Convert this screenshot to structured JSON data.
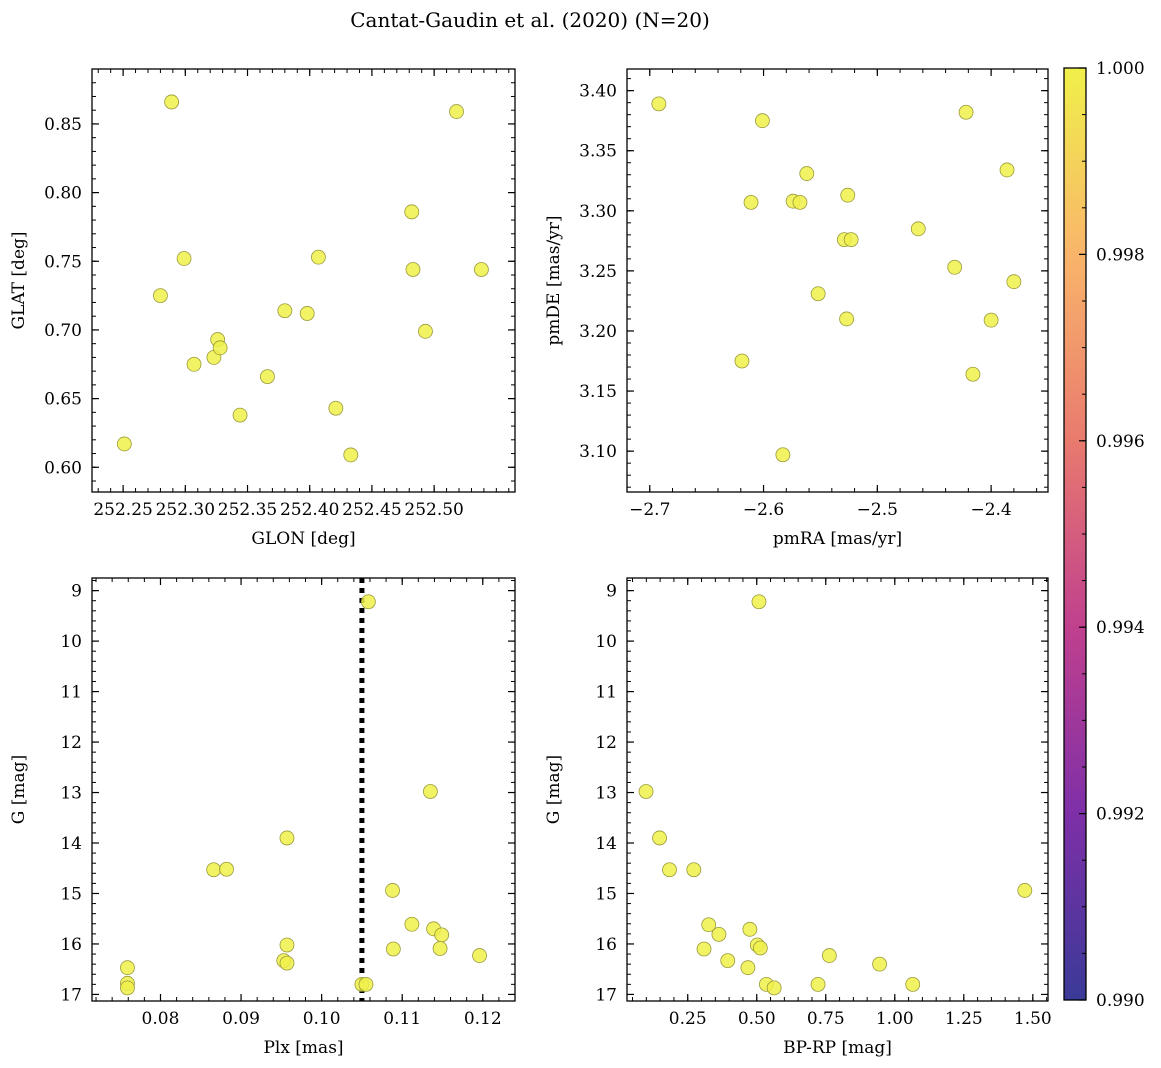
{
  "figure_title": "Cantat-Gaudin et al. (2020) (N=20)",
  "marker_color": "#f0f04a",
  "marker_edge": "#9a9a3a",
  "colorbar": {
    "range": [
      0.99,
      1.0
    ],
    "ticks": [
      0.99,
      0.992,
      0.994,
      0.996,
      0.998,
      1.0
    ],
    "tick_labels": [
      "0.990",
      "0.992",
      "0.994",
      "0.996",
      "0.998",
      "1.000"
    ],
    "colormap": "plasma",
    "stops": [
      "#3a3a98",
      "#7e2fa8",
      "#c0408e",
      "#e97a6e",
      "#f9b56a",
      "#f0f04a"
    ]
  },
  "chart_data": [
    {
      "type": "scatter",
      "name": "glon-glat",
      "xlabel": "GLON [deg]",
      "ylabel": "GLAT [deg]",
      "xlim": [
        252.225,
        252.565
      ],
      "ylim": [
        0.582,
        0.89
      ],
      "xticks": [
        252.25,
        252.3,
        252.35,
        252.4,
        252.45,
        252.5
      ],
      "xtick_labels": [
        "252.25",
        "252.30",
        "252.35",
        "252.40",
        "252.45",
        "252.50"
      ],
      "yticks": [
        0.6,
        0.65,
        0.7,
        0.75,
        0.8,
        0.85
      ],
      "ytick_labels": [
        "0.60",
        "0.65",
        "0.70",
        "0.75",
        "0.80",
        "0.85"
      ],
      "x": [
        252.251,
        252.289,
        252.28,
        252.299,
        252.307,
        252.323,
        252.326,
        252.328,
        252.344,
        252.366,
        252.38,
        252.398,
        252.407,
        252.433,
        252.421,
        252.482,
        252.483,
        252.493,
        252.518,
        252.538
      ],
      "y": [
        0.617,
        0.866,
        0.725,
        0.752,
        0.675,
        0.68,
        0.693,
        0.687,
        0.638,
        0.666,
        0.714,
        0.712,
        0.753,
        0.609,
        0.643,
        0.786,
        0.744,
        0.699,
        0.859,
        0.744
      ]
    },
    {
      "type": "scatter",
      "name": "pmra-pmde",
      "xlabel": "pmRA [mas/yr]",
      "ylabel": "pmDE [mas/yr]",
      "xlim": [
        -2.72,
        -2.35
      ],
      "ylim": [
        3.066,
        3.418
      ],
      "xticks": [
        -2.7,
        -2.6,
        -2.5,
        -2.4
      ],
      "xtick_labels": [
        "−2.7",
        "−2.6",
        "−2.5",
        "−2.4"
      ],
      "yticks": [
        3.1,
        3.15,
        3.2,
        3.25,
        3.3,
        3.35,
        3.4
      ],
      "ytick_labels": [
        "3.10",
        "3.15",
        "3.20",
        "3.25",
        "3.30",
        "3.35",
        "3.40"
      ],
      "x": [
        -2.692,
        -2.601,
        -2.611,
        -2.619,
        -2.583,
        -2.574,
        -2.568,
        -2.562,
        -2.552,
        -2.526,
        -2.529,
        -2.523,
        -2.527,
        -2.464,
        -2.432,
        -2.422,
        -2.416,
        -2.386,
        -2.38,
        -2.4
      ],
      "y": [
        3.389,
        3.375,
        3.307,
        3.175,
        3.097,
        3.308,
        3.307,
        3.331,
        3.231,
        3.313,
        3.276,
        3.276,
        3.21,
        3.285,
        3.253,
        3.382,
        3.164,
        3.334,
        3.241,
        3.209
      ]
    },
    {
      "type": "scatter",
      "name": "plx-g",
      "xlabel": "Plx [mas]",
      "ylabel": "G [mag]",
      "xlim": [
        0.0715,
        0.124
      ],
      "ylim": [
        17.13,
        8.75
      ],
      "xticks": [
        0.08,
        0.09,
        0.1,
        0.11,
        0.12
      ],
      "xtick_labels": [
        "0.08",
        "0.09",
        "0.10",
        "0.11",
        "0.12"
      ],
      "yticks": [
        9,
        10,
        11,
        12,
        13,
        14,
        15,
        16,
        17
      ],
      "ytick_labels": [
        "9",
        "10",
        "11",
        "12",
        "13",
        "14",
        "15",
        "16",
        "17"
      ],
      "vline": 0.105,
      "x": [
        0.1058,
        0.1135,
        0.0957,
        0.0866,
        0.0882,
        0.1088,
        0.1112,
        0.1139,
        0.1149,
        0.0957,
        0.1089,
        0.1147,
        0.1196,
        0.0953,
        0.0957,
        0.0759,
        0.0759,
        0.0759,
        0.105,
        0.1055
      ],
      "y": [
        9.22,
        12.98,
        13.9,
        14.53,
        14.52,
        14.94,
        15.61,
        15.7,
        15.82,
        16.02,
        16.1,
        16.09,
        16.23,
        16.33,
        16.38,
        16.47,
        16.78,
        16.87,
        16.8,
        16.8
      ]
    },
    {
      "type": "scatter",
      "name": "bprp-g",
      "xlabel": "BP-RP [mag]",
      "ylabel": "G [mag]",
      "xlim": [
        0.03,
        1.555
      ],
      "ylim": [
        17.13,
        8.75
      ],
      "xticks": [
        0.25,
        0.5,
        0.75,
        1.0,
        1.25,
        1.5
      ],
      "xtick_labels": [
        "0.25",
        "0.50",
        "0.75",
        "1.00",
        "1.25",
        "1.50"
      ],
      "yticks": [
        9,
        10,
        11,
        12,
        13,
        14,
        15,
        16,
        17
      ],
      "ytick_labels": [
        "9",
        "10",
        "11",
        "12",
        "13",
        "14",
        "15",
        "16",
        "17"
      ],
      "x": [
        0.508,
        0.099,
        0.148,
        0.184,
        0.272,
        1.471,
        0.326,
        0.363,
        0.475,
        0.309,
        0.502,
        0.513,
        0.763,
        0.395,
        0.945,
        0.468,
        0.535,
        0.563,
        0.722,
        1.065
      ],
      "y": [
        9.22,
        12.98,
        13.9,
        14.53,
        14.53,
        14.94,
        15.62,
        15.81,
        15.71,
        16.1,
        16.02,
        16.08,
        16.23,
        16.33,
        16.4,
        16.47,
        16.8,
        16.87,
        16.8,
        16.8
      ]
    }
  ]
}
